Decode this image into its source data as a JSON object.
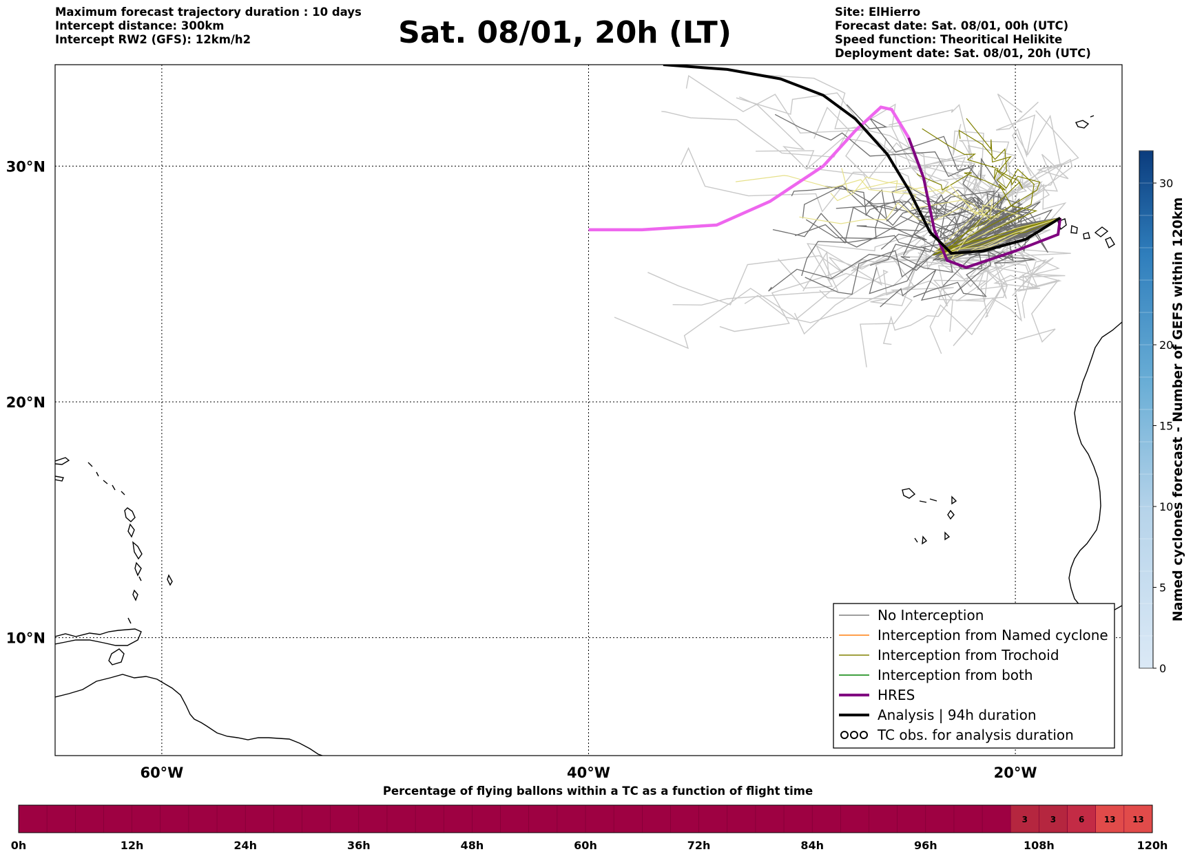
{
  "header": {
    "left_lines": [
      "Maximum forecast trajectory duration : 10 days",
      "Intercept distance: 300km",
      "Intercept RW2 (GFS):  12km/h2"
    ],
    "title": "Sat. 08/01, 20h (LT)",
    "right_lines": [
      "Site: ElHierro",
      "Forecast date: Sat. 08/01, 00h (UTC)",
      "Speed function: Theoritical Helikite",
      "Deployment date: Sat. 08/01, 20h (UTC)"
    ]
  },
  "map": {
    "lon_range": [
      -65,
      -15
    ],
    "lat_range": [
      5,
      34.3
    ],
    "lon_labels": [
      "60°W",
      "40°W",
      "20°W"
    ],
    "lat_labels": [
      "30°N",
      "20°N",
      "10°N"
    ],
    "gridlines": "dotted",
    "hres_track": [
      [
        -40.0,
        27.3
      ],
      [
        -37.5,
        27.3
      ],
      [
        -34.0,
        27.5
      ],
      [
        -31.5,
        28.5
      ],
      [
        -29.0,
        30.0
      ],
      [
        -27.5,
        31.5
      ],
      [
        -26.3,
        32.5
      ],
      [
        -25.8,
        32.4
      ],
      [
        -25.0,
        31.2
      ],
      [
        -24.3,
        29.5
      ],
      [
        -23.8,
        27.3
      ],
      [
        -23.2,
        26.0
      ],
      [
        -22.3,
        25.7
      ],
      [
        -20.0,
        26.4
      ],
      [
        -18.0,
        27.1
      ],
      [
        -17.9,
        27.8
      ]
    ],
    "analysis_track": [
      [
        -36.5,
        34.3
      ],
      [
        -33.5,
        34.1
      ],
      [
        -31.0,
        33.7
      ],
      [
        -29.0,
        33.0
      ],
      [
        -27.5,
        32.0
      ],
      [
        -26.0,
        30.5
      ],
      [
        -25.0,
        29.0
      ],
      [
        -24.0,
        27.2
      ],
      [
        -23.0,
        26.3
      ],
      [
        -21.5,
        26.4
      ],
      [
        -19.5,
        26.9
      ],
      [
        -17.9,
        27.8
      ]
    ],
    "colors": {
      "no_interception": "#7f7f7f",
      "named_cyclone": "#ff7f0e",
      "trochoid": "#808000",
      "both": "#008000",
      "hres": "#800080",
      "analysis": "#000000",
      "hres_highlight": "#ee66ee"
    }
  },
  "legend": {
    "items": [
      {
        "label": "No Interception",
        "color": "#7f7f7f",
        "style": "thin"
      },
      {
        "label": "Interception from Named cyclone",
        "color": "#ff7f0e",
        "style": "thin"
      },
      {
        "label": "Interception from Trochoid",
        "color": "#808000",
        "style": "thin"
      },
      {
        "label": "Interception from both",
        "color": "#008000",
        "style": "thin"
      },
      {
        "label": "HRES",
        "color": "#800080",
        "style": "thick"
      },
      {
        "label": "Analysis | 94h duration",
        "color": "#000000",
        "style": "thick"
      },
      {
        "label": "TC obs. for analysis duration",
        "color": "#000000",
        "style": "cyclone"
      }
    ],
    "position": "lower-right"
  },
  "colorbar": {
    "label": "Named cyclones forecast - Number of GEFS within 120km",
    "ticks": [
      "0",
      "5",
      "10",
      "15",
      "20",
      "30"
    ],
    "min": 0,
    "max": 32,
    "color_low": "#dbe9f6",
    "color_high": "#0b3c7d"
  },
  "timeline": {
    "title": "Percentage of flying ballons within a TC as a function of flight time",
    "tick_labels": [
      "0h",
      "12h",
      "24h",
      "36h",
      "48h",
      "60h",
      "72h",
      "84h",
      "96h",
      "108h",
      "120h"
    ],
    "cells": [
      {
        "start_h": 105,
        "end_h": 108,
        "value": "3",
        "color": "#b5263f"
      },
      {
        "start_h": 108,
        "end_h": 111,
        "value": "3",
        "color": "#b5263f"
      },
      {
        "start_h": 111,
        "end_h": 114,
        "value": "6",
        "color": "#c32b45"
      },
      {
        "start_h": 114,
        "end_h": 117,
        "value": "13",
        "color": "#e14b4a"
      },
      {
        "start_h": 117,
        "end_h": 120,
        "value": "13",
        "color": "#e14b4a"
      }
    ],
    "base_color": "#9e0142"
  }
}
